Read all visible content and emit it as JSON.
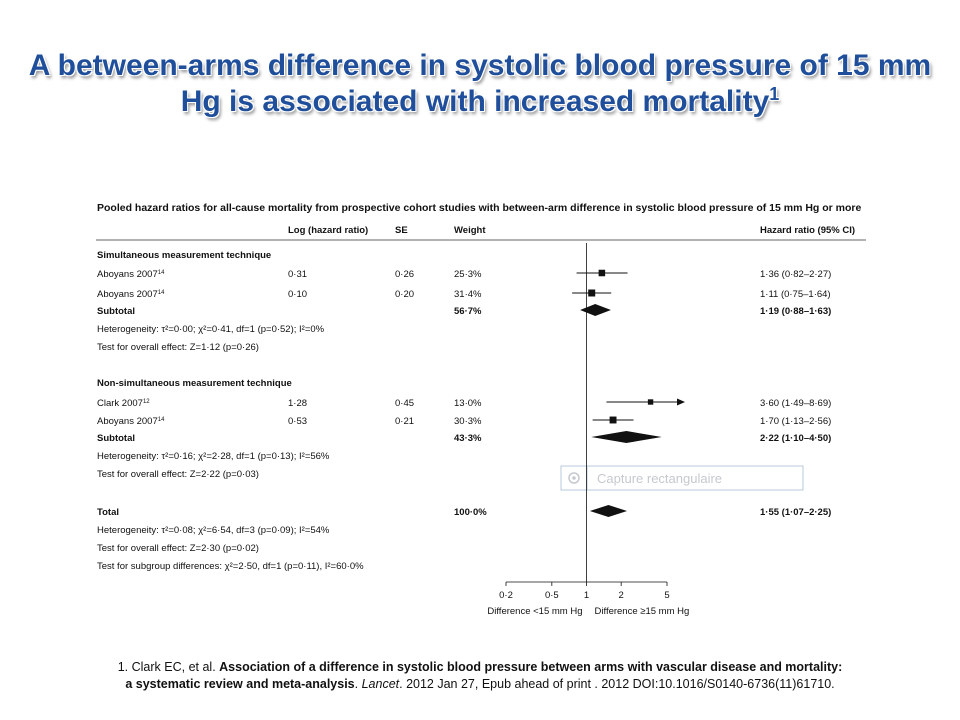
{
  "slide": {
    "title_main": "A between-arms difference in systolic blood pressure of 15 mm Hg is associated with increased mortality",
    "title_sup": "1"
  },
  "figure": {
    "heading": "Pooled hazard ratios for all-cause mortality from prospective cohort studies  with between-arm difference in systolic blood pressure of 15 mm Hg or more",
    "col_log": "Log (hazard ratio)",
    "col_se": "SE",
    "col_weight": "Weight",
    "col_hr": "Hazard ratio (95% CI)",
    "overlay_label": "Capture rectangulaire"
  },
  "chart_data": {
    "type": "forest",
    "x_scale": "log",
    "x_ticks": [
      0.2,
      0.5,
      1,
      2,
      5
    ],
    "x_tick_labels": [
      "0·2",
      "0·5",
      "1",
      "2",
      "5"
    ],
    "x_axis_left_label": "Difference <15 mm Hg",
    "x_axis_right_label": "Difference ≥15 mm Hg",
    "groups": [
      {
        "label": "Simultaneous measurement technique",
        "studies": [
          {
            "name": "Aboyans 2007",
            "ref": "14",
            "log_hr": "0·31",
            "se": "0·26",
            "weight": "25·3%",
            "hr_text": "1·36 (0·82–2·27)",
            "hr": 1.36,
            "lo": 0.82,
            "hi": 2.27,
            "w": 25.3
          },
          {
            "name": "Aboyans 2007",
            "ref": "14",
            "log_hr": "0·10",
            "se": "0·20",
            "weight": "31·4%",
            "hr_text": "1·11 (0·75–1·64)",
            "hr": 1.11,
            "lo": 0.75,
            "hi": 1.64,
            "w": 31.4
          }
        ],
        "subtotal": {
          "label": "Subtotal",
          "weight": "56·7%",
          "hr_text": "1·19 (0·88–1·63)",
          "hr": 1.19,
          "lo": 0.88,
          "hi": 1.63
        },
        "stats": [
          "Heterogeneity: τ²=0·00; χ²=0·41, df=1 (p=0·52); I²=0%",
          "Test for overall effect: Z=1·12 (p=0·26)"
        ]
      },
      {
        "label": "Non-simultaneous measurement technique",
        "studies": [
          {
            "name": "Clark 2007",
            "ref": "12",
            "log_hr": "1·28",
            "se": "0·45",
            "weight": "13·0%",
            "hr_text": "3·60 (1·49–8·69)",
            "hr": 3.6,
            "lo": 1.49,
            "hi": 8.69,
            "w": 13.0,
            "arrow_right": true
          },
          {
            "name": "Aboyans 2007",
            "ref": "14",
            "log_hr": "0·53",
            "se": "0·21",
            "weight": "30·3%",
            "hr_text": "1·70 (1·13–2·56)",
            "hr": 1.7,
            "lo": 1.13,
            "hi": 2.56,
            "w": 30.3
          }
        ],
        "subtotal": {
          "label": "Subtotal",
          "weight": "43·3%",
          "hr_text": "2·22 (1·10–4·50)",
          "hr": 2.22,
          "lo": 1.1,
          "hi": 4.5
        },
        "stats": [
          "Heterogeneity: τ²=0·16; χ²=2·28, df=1 (p=0·13); I²=56%",
          "Test for overall effect: Z=2·22 (p=0·03)"
        ]
      }
    ],
    "total": {
      "label": "Total",
      "weight": "100·0%",
      "hr_text": "1·55 (1·07–2·25)",
      "hr": 1.55,
      "lo": 1.07,
      "hi": 2.25
    },
    "total_stats": [
      "Heterogeneity: τ²=0·08; χ²=6·54, df=3 (p=0·09); I²=54%",
      "Test for overall effect: Z=2·30 (p=0·02)",
      "Test for subgroup differences: χ²=2·50, df=1 (p=0·11), I²=60·0%"
    ]
  },
  "footnote": {
    "line1_plain": "1. Clark EC, et al. ",
    "line1_bold": "Association of a difference in systolic blood pressure between arms with vascular disease and mortality:",
    "line2_bold": "a systematic review and meta-analysis",
    "line2_sep": ". ",
    "line2_journal": "Lancet",
    "line2_rest": ". 2012 Jan 27, Epub ahead of print . 2012 DOI:10.1016/S0140-6736(11)61710."
  },
  "colors": {
    "title": "#1f4e9b",
    "ink": "#111111",
    "overlay_border": "#b9c9dc",
    "overlay_text": "#c5c9cf"
  }
}
